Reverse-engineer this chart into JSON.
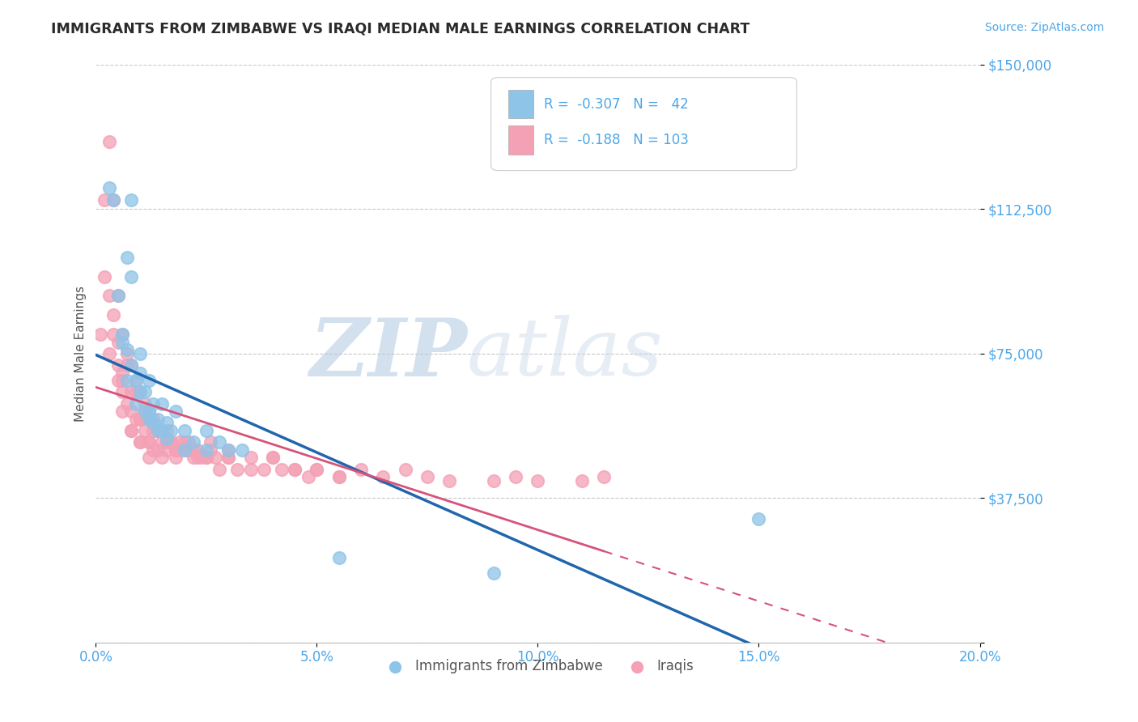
{
  "title": "IMMIGRANTS FROM ZIMBABWE VS IRAQI MEDIAN MALE EARNINGS CORRELATION CHART",
  "source": "Source: ZipAtlas.com",
  "ylabel": "Median Male Earnings",
  "xlim": [
    0.0,
    0.2
  ],
  "ylim": [
    0,
    150000
  ],
  "yticks": [
    0,
    37500,
    75000,
    112500,
    150000
  ],
  "ytick_labels": [
    "",
    "$37,500",
    "$75,000",
    "$112,500",
    "$150,000"
  ],
  "xticks": [
    0.0,
    0.05,
    0.1,
    0.15,
    0.2
  ],
  "xtick_labels": [
    "0.0%",
    "5.0%",
    "10.0%",
    "15.0%",
    "20.0%"
  ],
  "legend_R_zimbabwe": "-0.307",
  "legend_N_zimbabwe": "42",
  "legend_R_iraqi": "-0.188",
  "legend_N_iraqi": "103",
  "color_zimbabwe": "#8ec4e8",
  "color_iraqi": "#f4a0b5",
  "line_color_zimbabwe": "#2166ac",
  "line_color_iraqi": "#d6537a",
  "watermark_zip": "ZIP",
  "watermark_atlas": "atlas",
  "background_color": "#ffffff",
  "grid_color": "#c8c8c8",
  "axis_label_color": "#4da6e8",
  "title_color": "#2b2b2b",
  "zimbabwe_x": [
    0.003,
    0.004,
    0.005,
    0.006,
    0.007,
    0.008,
    0.009,
    0.01,
    0.011,
    0.012,
    0.013,
    0.014,
    0.015,
    0.016,
    0.017,
    0.018,
    0.02,
    0.022,
    0.025,
    0.028,
    0.03,
    0.033,
    0.008,
    0.01,
    0.012,
    0.014,
    0.016,
    0.006,
    0.007,
    0.009,
    0.011,
    0.013,
    0.015,
    0.02,
    0.025,
    0.055,
    0.09,
    0.15,
    0.007,
    0.008,
    0.01,
    0.012
  ],
  "zimbabwe_y": [
    118000,
    115000,
    90000,
    80000,
    76000,
    115000,
    68000,
    70000,
    65000,
    60000,
    62000,
    58000,
    62000,
    57000,
    55000,
    60000,
    55000,
    52000,
    55000,
    52000,
    50000,
    50000,
    72000,
    65000,
    58000,
    55000,
    53000,
    78000,
    68000,
    62000,
    60000,
    57000,
    55000,
    50000,
    50000,
    22000,
    18000,
    32000,
    100000,
    95000,
    75000,
    68000
  ],
  "iraqi_x": [
    0.001,
    0.002,
    0.003,
    0.003,
    0.004,
    0.004,
    0.005,
    0.005,
    0.005,
    0.006,
    0.006,
    0.006,
    0.007,
    0.007,
    0.008,
    0.008,
    0.008,
    0.009,
    0.009,
    0.01,
    0.01,
    0.01,
    0.011,
    0.011,
    0.012,
    0.012,
    0.012,
    0.013,
    0.013,
    0.014,
    0.014,
    0.015,
    0.015,
    0.016,
    0.016,
    0.017,
    0.018,
    0.018,
    0.019,
    0.02,
    0.021,
    0.022,
    0.023,
    0.025,
    0.026,
    0.027,
    0.028,
    0.03,
    0.032,
    0.035,
    0.038,
    0.04,
    0.042,
    0.045,
    0.048,
    0.05,
    0.055,
    0.06,
    0.065,
    0.07,
    0.075,
    0.08,
    0.09,
    0.095,
    0.1,
    0.11,
    0.115,
    0.004,
    0.006,
    0.008,
    0.01,
    0.012,
    0.014,
    0.016,
    0.018,
    0.02,
    0.022,
    0.024,
    0.026,
    0.03,
    0.035,
    0.04,
    0.045,
    0.05,
    0.055,
    0.002,
    0.003,
    0.005,
    0.007,
    0.009,
    0.011,
    0.013,
    0.015,
    0.017,
    0.019,
    0.021,
    0.023,
    0.025,
    0.008,
    0.01,
    0.006,
    0.012,
    0.03
  ],
  "iraqi_y": [
    80000,
    95000,
    130000,
    75000,
    115000,
    85000,
    90000,
    72000,
    68000,
    80000,
    70000,
    60000,
    75000,
    62000,
    72000,
    65000,
    55000,
    68000,
    58000,
    65000,
    58000,
    52000,
    60000,
    55000,
    58000,
    52000,
    48000,
    55000,
    50000,
    55000,
    50000,
    52000,
    48000,
    55000,
    50000,
    52000,
    50000,
    48000,
    50000,
    50000,
    52000,
    48000,
    50000,
    48000,
    52000,
    48000,
    45000,
    48000,
    45000,
    48000,
    45000,
    48000,
    45000,
    45000,
    43000,
    45000,
    43000,
    45000,
    43000,
    45000,
    43000,
    42000,
    42000,
    43000,
    42000,
    42000,
    43000,
    80000,
    68000,
    60000,
    58000,
    52000,
    55000,
    52000,
    50000,
    52000,
    50000,
    48000,
    50000,
    48000,
    45000,
    48000,
    45000,
    45000,
    43000,
    115000,
    90000,
    78000,
    72000,
    65000,
    62000,
    58000,
    55000,
    52000,
    52000,
    50000,
    48000,
    48000,
    55000,
    52000,
    65000,
    60000,
    50000
  ]
}
